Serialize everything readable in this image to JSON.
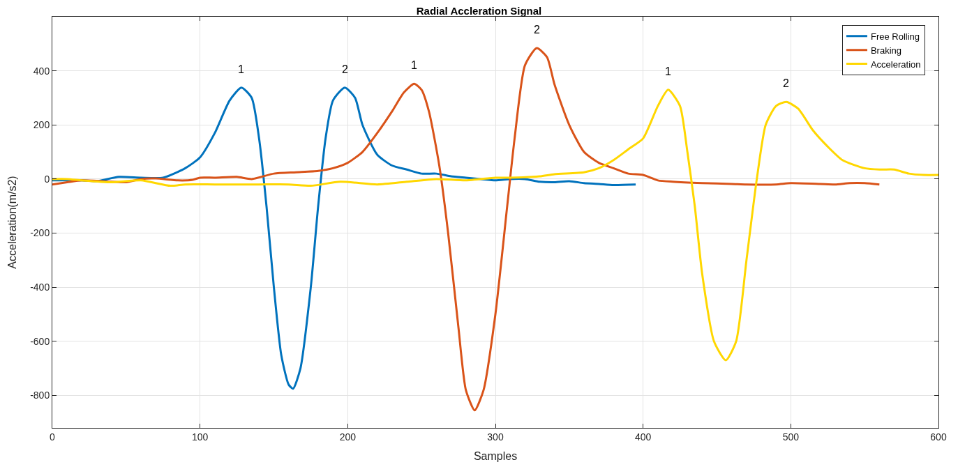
{
  "chart_data": {
    "type": "line",
    "title": "Radial Accleration Signal",
    "xlabel": "Samples",
    "ylabel": "Acceleration(m/s2)",
    "xlim": [
      0,
      600
    ],
    "xticks": [
      0,
      100,
      200,
      300,
      400,
      500,
      600
    ],
    "ylim": [
      -920,
      600
    ],
    "yticks": [
      -800,
      -600,
      -400,
      -200,
      0,
      200,
      400
    ],
    "grid": true,
    "legend": "top right",
    "line_style": "solid",
    "marker": "none",
    "series": [
      {
        "name": "Free Rolling",
        "color": "#0072bd",
        "x": [
          0,
          20,
          30,
          45,
          60,
          75,
          90,
          100,
          110,
          120,
          128,
          135,
          140,
          145,
          150,
          155,
          160,
          163,
          168,
          175,
          180,
          185,
          190,
          198,
          205,
          210,
          220,
          230,
          240,
          250,
          260,
          270,
          280,
          290,
          300,
          310,
          320,
          330,
          340,
          350,
          360,
          370,
          380,
          395
        ],
        "values": [
          -5,
          -5,
          -8,
          8,
          5,
          5,
          40,
          80,
          170,
          290,
          338,
          300,
          150,
          -100,
          -400,
          -650,
          -760,
          -775,
          -700,
          -400,
          -100,
          150,
          290,
          338,
          300,
          200,
          90,
          50,
          35,
          20,
          20,
          10,
          5,
          0,
          -5,
          0,
          0,
          -10,
          -12,
          -8,
          -15,
          -18,
          -22,
          -20
        ]
      },
      {
        "name": "Braking",
        "color": "#d95319",
        "x": [
          0,
          10,
          20,
          40,
          50,
          60,
          70,
          85,
          95,
          100,
          110,
          125,
          135,
          150,
          165,
          180,
          190,
          200,
          210,
          220,
          230,
          238,
          245,
          250,
          255,
          262,
          268,
          275,
          280,
          286,
          292,
          300,
          308,
          313,
          320,
          328,
          335,
          340,
          350,
          360,
          370,
          380,
          390,
          400,
          410,
          420,
          440,
          460,
          470,
          490,
          500,
          520,
          530,
          540,
          550,
          560
        ],
        "values": [
          -20,
          -12,
          -5,
          -10,
          -12,
          0,
          2,
          -5,
          -3,
          5,
          5,
          8,
          0,
          20,
          25,
          30,
          40,
          60,
          100,
          170,
          250,
          320,
          352,
          330,
          250,
          50,
          -200,
          -550,
          -780,
          -855,
          -780,
          -500,
          -100,
          150,
          420,
          484,
          450,
          350,
          200,
          100,
          60,
          40,
          20,
          15,
          -5,
          -10,
          -15,
          -18,
          -20,
          -20,
          -15,
          -18,
          -20,
          -15,
          -15,
          -20
        ]
      },
      {
        "name": "Acceleration",
        "color": "#ffd700",
        "x": [
          0,
          10,
          20,
          40,
          60,
          80,
          90,
          110,
          140,
          160,
          175,
          195,
          220,
          240,
          260,
          280,
          300,
          310,
          330,
          340,
          360,
          370,
          380,
          390,
          400,
          410,
          417,
          425,
          430,
          435,
          440,
          448,
          456,
          463,
          470,
          477,
          483,
          490,
          497,
          505,
          515,
          525,
          535,
          550,
          560,
          570,
          580,
          590,
          600
        ],
        "values": [
          0,
          0,
          -5,
          -12,
          -5,
          -25,
          -20,
          -20,
          -20,
          -20,
          -25,
          -10,
          -20,
          -10,
          0,
          -5,
          5,
          5,
          10,
          18,
          25,
          40,
          70,
          110,
          150,
          270,
          330,
          270,
          100,
          -100,
          -350,
          -600,
          -670,
          -600,
          -300,
          0,
          200,
          270,
          285,
          260,
          180,
          120,
          70,
          40,
          35,
          35,
          20,
          15,
          15
        ]
      }
    ],
    "annotations": [
      {
        "text": "1",
        "x": 128,
        "y": 338
      },
      {
        "text": "2",
        "x": 198,
        "y": 338
      },
      {
        "text": "1",
        "x": 245,
        "y": 352
      },
      {
        "text": "2",
        "x": 328,
        "y": 484
      },
      {
        "text": "1",
        "x": 417,
        "y": 330
      },
      {
        "text": "2",
        "x": 497,
        "y": 285
      }
    ]
  }
}
